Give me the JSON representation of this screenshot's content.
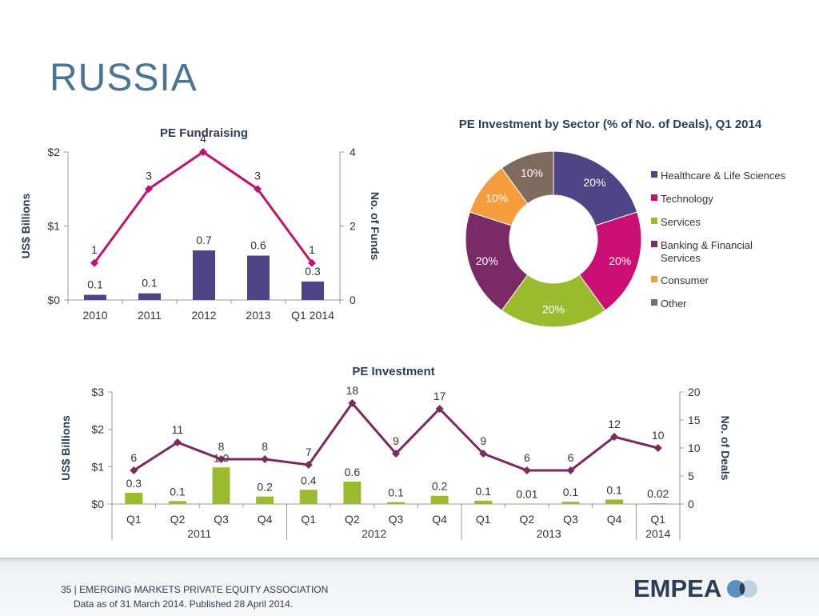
{
  "slide": {
    "title": "RUSSIA"
  },
  "footer": {
    "line1": "35 | EMERGING MARKETS PRIVATE EQUITY ASSOCIATION",
    "line2": "Data as of 31 March 2014. Published 28 April 2014.",
    "logo": "EMPEA"
  },
  "colors": {
    "title": "#4a7590",
    "bar_purple": "#4f4586",
    "line_magenta": "#c0136f",
    "bar_green": "#9bbb2e",
    "line_plum": "#7a2a5e",
    "axis_label": "#2c3e55"
  },
  "chart_data": [
    {
      "id": "fundraising",
      "type": "bar+line",
      "title": "PE Fundraising",
      "ylabel": "US$ Billions",
      "y2label": "No. of Funds",
      "categories": [
        "2010",
        "2011",
        "2012",
        "2013",
        "Q1 2014"
      ],
      "ylim": [
        0,
        2
      ],
      "yticks": [
        "$0",
        "$1",
        "$2"
      ],
      "y2lim": [
        0,
        4
      ],
      "y2ticks": [
        "0",
        "2",
        "4"
      ],
      "series": [
        {
          "name": "US$ Billions",
          "kind": "bar",
          "axis": "left",
          "values": [
            0.07,
            0.09,
            0.67,
            0.6,
            0.25
          ],
          "labels": [
            "0.1",
            "0.1",
            "0.7",
            "0.6",
            "0.3"
          ]
        },
        {
          "name": "No. of Funds",
          "kind": "line",
          "axis": "right",
          "values": [
            1,
            3,
            4,
            3,
            1
          ],
          "labels": [
            "1",
            "3",
            "4",
            "3",
            "1"
          ]
        }
      ]
    },
    {
      "id": "sector",
      "type": "pie",
      "title": "PE Investment by Sector  (% of No. of Deals), Q1 2014",
      "slices": [
        {
          "label": "Healthcare & Life Sciences",
          "value": 20,
          "text": "20%",
          "color": "#4f4586"
        },
        {
          "label": "Technology",
          "value": 20,
          "text": "20%",
          "color": "#cc0e74"
        },
        {
          "label": "Services",
          "value": 20,
          "text": "20%",
          "color": "#9bbb2e"
        },
        {
          "label": "Banking & Financial Services",
          "value": 20,
          "text": "20%",
          "color": "#7a2a64"
        },
        {
          "label": "Consumer",
          "value": 10,
          "text": "10%",
          "color": "#f59c3c"
        },
        {
          "label": "Other",
          "value": 10,
          "text": "10%",
          "color": "#7e6b5e"
        }
      ],
      "legend": "right"
    },
    {
      "id": "investment",
      "type": "bar+line",
      "title": "PE Investment",
      "ylabel": "US$ Billions",
      "y2label": "No. of Deals",
      "categories": [
        "Q1",
        "Q2",
        "Q3",
        "Q4",
        "Q1",
        "Q2",
        "Q3",
        "Q4",
        "Q1",
        "Q2",
        "Q3",
        "Q4",
        "Q1"
      ],
      "groups": [
        {
          "label": "2011",
          "span": 4
        },
        {
          "label": "2012",
          "span": 4
        },
        {
          "label": "2013",
          "span": 4
        },
        {
          "label": "2014",
          "span": 1
        }
      ],
      "ylim": [
        0,
        3
      ],
      "yticks": [
        "$0",
        "$1",
        "$2",
        "$3"
      ],
      "y2lim": [
        0,
        20
      ],
      "y2ticks": [
        "0",
        "5",
        "10",
        "15",
        "20"
      ],
      "series": [
        {
          "name": "US$ Billions",
          "kind": "bar",
          "axis": "left",
          "values": [
            0.3,
            0.08,
            0.98,
            0.2,
            0.38,
            0.6,
            0.05,
            0.22,
            0.09,
            0.01,
            0.06,
            0.12,
            0.02
          ],
          "labels": [
            "0.3",
            "0.1",
            "1.0",
            "0.2",
            "0.4",
            "0.6",
            "0.1",
            "0.2",
            "0.1",
            "0.01",
            "0.1",
            "0.1",
            "0.02"
          ]
        },
        {
          "name": "No. of Deals",
          "kind": "line",
          "axis": "right",
          "values": [
            6,
            11,
            8,
            8,
            7,
            18,
            9,
            17,
            9,
            6,
            6,
            12,
            10
          ],
          "labels": [
            "6",
            "11",
            "8",
            "8",
            "7",
            "18",
            "9",
            "17",
            "9",
            "6",
            "6",
            "12",
            "10"
          ]
        }
      ]
    }
  ]
}
